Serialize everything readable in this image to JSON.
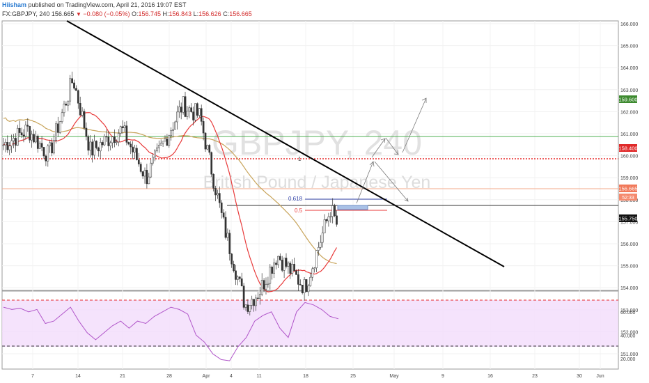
{
  "header": {
    "author": "Hiisham",
    "published": "published on TradingView.com, April 21, 2016 19:07 EST",
    "symbol": "FX:GBPJPY, 240",
    "last": "156.665",
    "change": "−0.080 (−0.05%)",
    "o_label": "O:",
    "o": "156.745",
    "h_label": "H:",
    "h": "156.843",
    "l_label": "L:",
    "l": "156.626",
    "c_label": "C:",
    "c": "156.665"
  },
  "watermark": {
    "symbol": "GBPJPY, 240",
    "name": "British Pound / Japanese Yen"
  },
  "colors": {
    "up": "#26a69a",
    "down": "#ef5350",
    "ma_fast": "#e83a3a",
    "ma_slow": "#c8a45a",
    "trendline": "#000000",
    "rsi_line": "#b055c9",
    "rsi_band": "#f3dcfb",
    "resistance": "#e82a2a",
    "support_green": "#4caf50"
  },
  "badges": {
    "resistance": "158.400",
    "last": "156.665",
    "countdown": "52:33",
    "support": "155.750",
    "target": "159.600"
  },
  "fib": {
    "f618": "0.618",
    "f05": "0.5",
    "f1": "1"
  },
  "chart_data": [
    {
      "type": "candlestick",
      "title": "GBPJPY, 240",
      "subtitle": "British Pound / Japanese Yen",
      "ylim": [
        150.8,
        166.2
      ],
      "y_ticks": [
        151,
        152,
        153,
        154,
        155,
        156,
        157,
        158,
        159,
        160,
        161,
        162,
        163,
        164,
        165,
        166
      ],
      "x_ticks": [
        "7",
        "14",
        "21",
        "28",
        "Apr",
        "4",
        "11",
        "18",
        "25",
        "May",
        "9",
        "16",
        "23",
        "30",
        "Jun",
        "6"
      ],
      "series_close_approx": [
        {
          "date": "Mar 3",
          "close": 160.5
        },
        {
          "date": "Mar 7",
          "close": 161.2
        },
        {
          "date": "Mar 10",
          "close": 160.0
        },
        {
          "date": "Mar 14",
          "close": 163.5
        },
        {
          "date": "Mar 17",
          "close": 160.2
        },
        {
          "date": "Mar 21",
          "close": 161.2
        },
        {
          "date": "Mar 24",
          "close": 159.0
        },
        {
          "date": "Mar 28",
          "close": 162.3
        },
        {
          "date": "Mar 31",
          "close": 161.8
        },
        {
          "date": "Apr 4",
          "close": 157.0
        },
        {
          "date": "Apr 7",
          "close": 153.2
        },
        {
          "date": "Apr 11",
          "close": 153.8
        },
        {
          "date": "Apr 14",
          "close": 155.5
        },
        {
          "date": "Apr 18",
          "close": 154.0
        },
        {
          "date": "Apr 20",
          "close": 157.6
        },
        {
          "date": "Apr 21",
          "close": 156.665
        }
      ],
      "levels": [
        {
          "label": "158.400",
          "value": 158.4
        },
        {
          "label": "156.665",
          "value": 156.665
        },
        {
          "label": "155.750",
          "value": 155.75
        },
        {
          "label": "159.600",
          "value": 159.6
        }
      ],
      "fib_levels": [
        {
          "label": "1",
          "value": 158.4
        },
        {
          "label": "0.618",
          "value": 156.15
        },
        {
          "label": "0.5",
          "value": 155.35
        }
      ]
    },
    {
      "type": "line",
      "title": "RSI",
      "ylim": [
        14,
        72
      ],
      "y_ticks": [
        20,
        40,
        60
      ],
      "band": [
        30,
        70
      ],
      "values_approx": [
        64,
        62,
        63,
        60,
        62,
        50,
        52,
        58,
        64,
        52,
        42,
        36,
        42,
        48,
        52,
        46,
        52,
        50,
        56,
        60,
        64,
        62,
        58,
        40,
        34,
        24,
        19,
        18,
        30,
        38,
        52,
        57,
        60,
        46,
        38,
        60,
        68,
        66,
        62,
        56,
        54
      ]
    }
  ]
}
